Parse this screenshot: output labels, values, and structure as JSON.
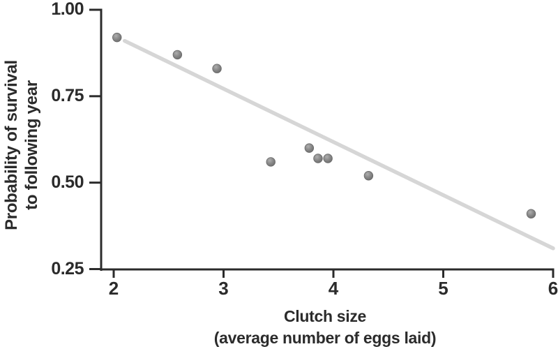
{
  "figure": {
    "xlabel_line1": "Clutch size",
    "xlabel_line2": "(average number of eggs laid)",
    "ylabel_line1": "Probability of survival",
    "ylabel_line2": "to following year"
  },
  "chart_data": {
    "type": "scatter",
    "title": "",
    "xlabel": "Clutch size (average number of eggs laid)",
    "ylabel": "Probability of survival to following year",
    "xlim": [
      2,
      6
    ],
    "ylim": [
      0.25,
      1.0
    ],
    "grid": false,
    "legend": "none",
    "x_ticks": [
      2,
      3,
      4,
      5,
      6
    ],
    "x_tick_labels": [
      "2",
      "3",
      "4",
      "5",
      "6"
    ],
    "y_ticks": [
      0.25,
      0.5,
      0.75,
      1.0
    ],
    "y_tick_labels": [
      "0.25",
      "0.50",
      "0.75",
      "1.00"
    ],
    "points": [
      {
        "x": 2.03,
        "y": 0.92
      },
      {
        "x": 2.58,
        "y": 0.87
      },
      {
        "x": 2.94,
        "y": 0.83
      },
      {
        "x": 3.43,
        "y": 0.56
      },
      {
        "x": 3.78,
        "y": 0.6
      },
      {
        "x": 3.86,
        "y": 0.57
      },
      {
        "x": 3.95,
        "y": 0.57
      },
      {
        "x": 4.32,
        "y": 0.52
      },
      {
        "x": 5.8,
        "y": 0.41
      }
    ],
    "trend_line": {
      "x1": 2.1,
      "y1": 0.91,
      "x2": 6.0,
      "y2": 0.31
    },
    "colors": {
      "axis": "#2b2b2b",
      "text": "#2b2b2b",
      "trend_line": "#d6d6d6",
      "point_fill": "#8c8c8c",
      "point_highlight": "#aeaeae",
      "point_edge": "#696969",
      "background": "#ffffff"
    }
  }
}
